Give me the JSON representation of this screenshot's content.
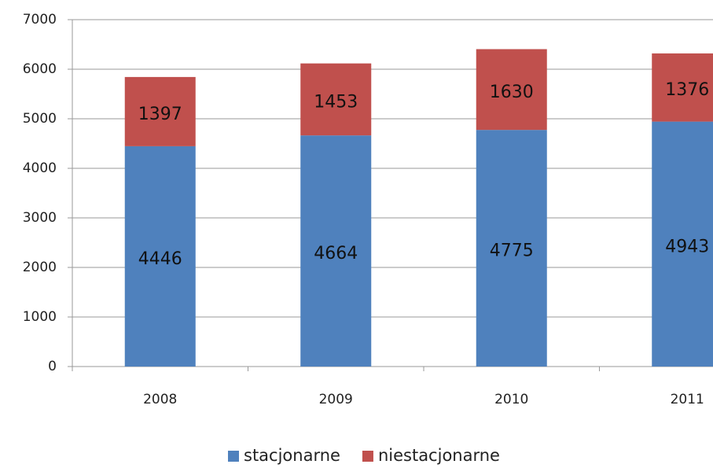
{
  "chart_data": {
    "type": "stacked-bar",
    "categories": [
      "2008",
      "2009",
      "2010",
      "2011"
    ],
    "series": [
      {
        "name": "stacjonarne",
        "color": "#4f81bd",
        "values": [
          4446,
          4664,
          4775,
          4943
        ]
      },
      {
        "name": "niestacjonarne",
        "color": "#c0504d",
        "values": [
          1397,
          1453,
          1630,
          1376
        ]
      }
    ],
    "ylim": [
      0,
      7000
    ],
    "yticks": [
      0,
      1000,
      2000,
      3000,
      4000,
      5000,
      6000,
      7000
    ],
    "grid": true,
    "legend": "bottom"
  }
}
